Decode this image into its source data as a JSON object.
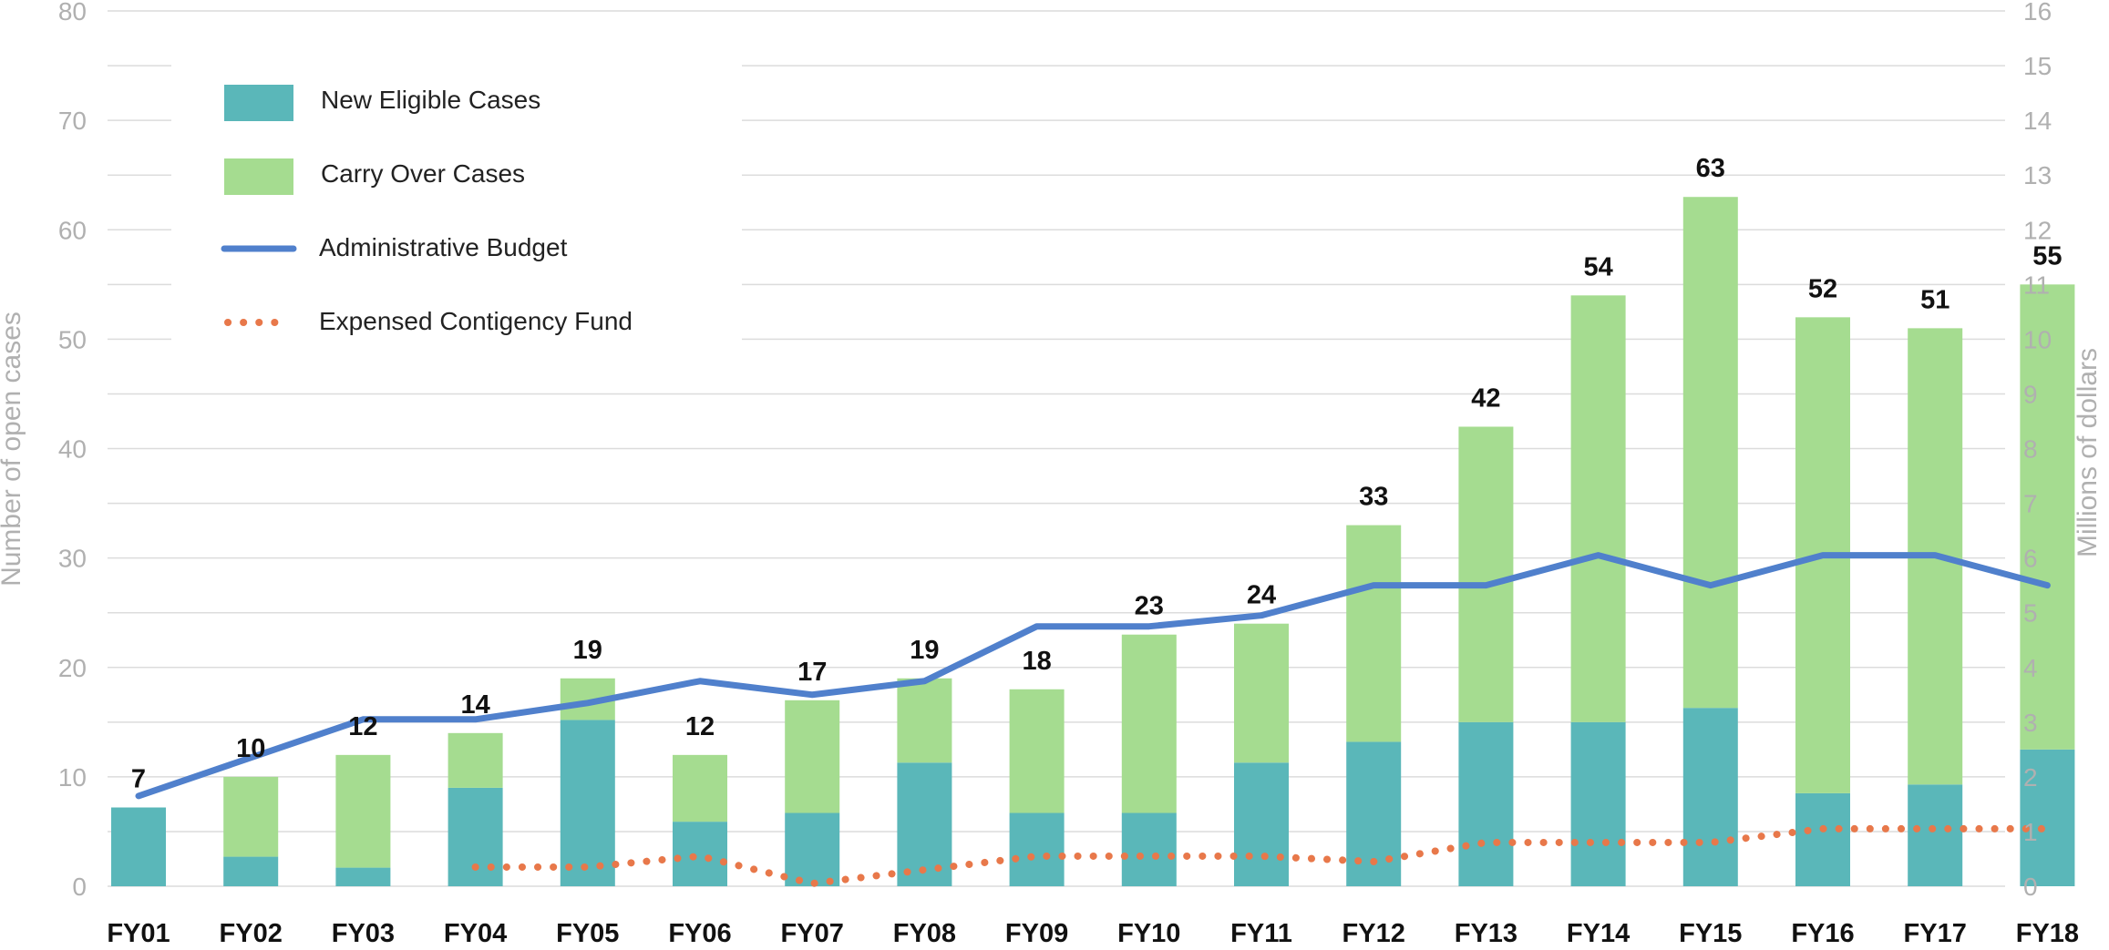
{
  "chart_data": {
    "type": "bar",
    "title": "",
    "categories": [
      "FY01",
      "FY02",
      "FY03",
      "FY04",
      "FY05",
      "FY06",
      "FY07",
      "FY08",
      "FY09",
      "FY10",
      "FY11",
      "FY12",
      "FY13",
      "FY14",
      "FY15",
      "FY16",
      "FY17",
      "FY18"
    ],
    "totals": [
      "7",
      "10",
      "12",
      "14",
      "19",
      "12",
      "17",
      "19",
      "18",
      "23",
      "24",
      "33",
      "42",
      "54",
      "63",
      "52",
      "51",
      "55"
    ],
    "series": [
      {
        "name": "New Eligible Cases",
        "type": "bar",
        "color": "#5ab7b9",
        "axis": "left",
        "values": [
          7.2,
          2.7,
          1.7,
          9.0,
          15.2,
          5.9,
          6.7,
          11.3,
          6.7,
          6.7,
          11.3,
          13.2,
          15.0,
          15.0,
          16.3,
          8.5,
          9.3,
          12.5
        ]
      },
      {
        "name": "Carry Over Cases",
        "type": "bar",
        "color": "#a5dc90",
        "axis": "left",
        "values": [
          0,
          7.3,
          10.3,
          5.0,
          3.8,
          6.1,
          10.3,
          7.7,
          11.3,
          16.3,
          12.7,
          19.8,
          27.0,
          39.0,
          46.7,
          43.5,
          41.7,
          42.5
        ]
      },
      {
        "name": "Administrative Budget",
        "type": "line",
        "color": "#5080cc",
        "axis": "right",
        "values": [
          1.65,
          2.35,
          3.05,
          3.05,
          3.35,
          3.75,
          3.5,
          3.75,
          4.75,
          4.75,
          4.95,
          5.5,
          5.5,
          6.05,
          5.5,
          6.05,
          6.05,
          5.5
        ]
      },
      {
        "name": "Expensed Contigency Fund",
        "type": "line-dotted",
        "color": "#e8784a",
        "axis": "right",
        "values": [
          null,
          null,
          null,
          0.35,
          0.35,
          0.55,
          0.05,
          0.3,
          0.55,
          0.55,
          0.55,
          0.45,
          0.8,
          0.8,
          0.8,
          1.05,
          1.05,
          1.05
        ]
      }
    ],
    "y_left": {
      "label": "Number of open cases",
      "min": 0,
      "max": 80,
      "ticks": [
        "0",
        "10",
        "20",
        "30",
        "40",
        "50",
        "60",
        "70",
        "80"
      ]
    },
    "y_right": {
      "label": "Millions of dollars",
      "min": 0,
      "max": 16,
      "ticks": [
        "0",
        "1",
        "2",
        "3",
        "4",
        "5",
        "6",
        "7",
        "8",
        "9",
        "10",
        "11",
        "12",
        "13",
        "14",
        "15",
        "16"
      ]
    },
    "grid": true,
    "legend_position": "top-left"
  }
}
